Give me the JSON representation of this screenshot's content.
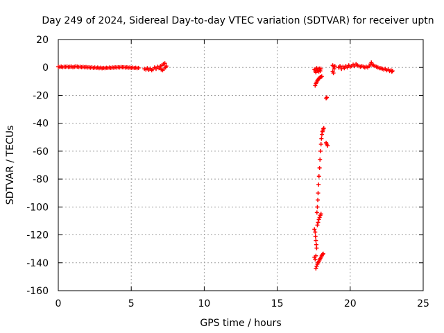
{
  "chart_data": {
    "type": "scatter",
    "title": "Day 249 of 2024, Sidereal Day-to-day VTEC variation (SDTVAR) for receiver uptn",
    "xlabel": "GPS time / hours",
    "ylabel": "SDTVAR / TECUs",
    "xlim": [
      0,
      25
    ],
    "ylim": [
      -160,
      20
    ],
    "xticks": [
      0,
      5,
      10,
      15,
      20,
      25
    ],
    "yticks": [
      -160,
      -140,
      -120,
      -100,
      -80,
      -60,
      -40,
      -20,
      0,
      20
    ],
    "grid": true,
    "marker": "+",
    "color": "#ff0000",
    "series": [
      {
        "name": "SDTVAR",
        "points": [
          [
            0.0,
            0.5
          ],
          [
            0.1,
            0.3
          ],
          [
            0.2,
            0.6
          ],
          [
            0.3,
            0.2
          ],
          [
            0.4,
            0.5
          ],
          [
            0.5,
            0.4
          ],
          [
            0.6,
            0.7
          ],
          [
            0.7,
            0.3
          ],
          [
            0.8,
            0.5
          ],
          [
            0.9,
            0.6
          ],
          [
            1.0,
            0.2
          ],
          [
            1.1,
            0.4
          ],
          [
            1.2,
            0.8
          ],
          [
            1.3,
            0.6
          ],
          [
            1.4,
            0.3
          ],
          [
            1.5,
            0.5
          ],
          [
            1.6,
            0.2
          ],
          [
            1.7,
            0.4
          ],
          [
            1.8,
            0.1
          ],
          [
            1.9,
            0.3
          ],
          [
            2.0,
            0.0
          ],
          [
            2.1,
            0.2
          ],
          [
            2.2,
            -0.2
          ],
          [
            2.3,
            0.1
          ],
          [
            2.4,
            -0.3
          ],
          [
            2.5,
            0.0
          ],
          [
            2.6,
            -0.4
          ],
          [
            2.7,
            -0.1
          ],
          [
            2.8,
            -0.5
          ],
          [
            2.9,
            -0.2
          ],
          [
            3.0,
            -0.6
          ],
          [
            3.1,
            -0.3
          ],
          [
            3.2,
            -0.5
          ],
          [
            3.3,
            -0.2
          ],
          [
            3.4,
            -0.4
          ],
          [
            3.5,
            -0.1
          ],
          [
            3.6,
            -0.3
          ],
          [
            3.7,
            0.0
          ],
          [
            3.8,
            -0.2
          ],
          [
            3.9,
            0.1
          ],
          [
            4.0,
            -0.1
          ],
          [
            4.1,
            0.2
          ],
          [
            4.2,
            0.0
          ],
          [
            4.3,
            0.3
          ],
          [
            4.4,
            0.1
          ],
          [
            4.5,
            0.2
          ],
          [
            4.6,
            -0.1
          ],
          [
            4.7,
            0.1
          ],
          [
            4.8,
            -0.2
          ],
          [
            4.9,
            0.0
          ],
          [
            5.0,
            -0.3
          ],
          [
            5.1,
            -0.1
          ],
          [
            5.2,
            -0.4
          ],
          [
            5.3,
            -0.2
          ],
          [
            5.4,
            -0.5
          ],
          [
            5.5,
            -0.3
          ],
          [
            5.9,
            -1.0
          ],
          [
            6.0,
            -1.5
          ],
          [
            6.1,
            -0.5
          ],
          [
            6.2,
            -1.8
          ],
          [
            6.3,
            -0.8
          ],
          [
            6.4,
            -2.0
          ],
          [
            6.5,
            -1.2
          ],
          [
            6.6,
            0.0
          ],
          [
            6.7,
            -1.0
          ],
          [
            6.8,
            0.5
          ],
          [
            6.9,
            -0.5
          ],
          [
            7.0,
            1.0
          ],
          [
            7.05,
            -1.5
          ],
          [
            7.1,
            1.5
          ],
          [
            7.15,
            -2.0
          ],
          [
            7.2,
            2.5
          ],
          [
            7.25,
            -1.0
          ],
          [
            7.3,
            3.0
          ],
          [
            7.35,
            0.0
          ],
          [
            7.4,
            1.0
          ],
          [
            17.55,
            -1.5
          ],
          [
            17.6,
            -2.5
          ],
          [
            17.65,
            -3.5
          ],
          [
            17.7,
            -0.5
          ],
          [
            17.75,
            -2.0
          ],
          [
            17.8,
            -1.0
          ],
          [
            17.85,
            -3.0
          ],
          [
            17.9,
            -0.8
          ],
          [
            17.95,
            -2.5
          ],
          [
            18.0,
            -1.0
          ],
          [
            17.6,
            -13.0
          ],
          [
            17.65,
            -11.5
          ],
          [
            17.7,
            -10.5
          ],
          [
            17.75,
            -9.5
          ],
          [
            17.8,
            -8.8
          ],
          [
            17.85,
            -8.0
          ],
          [
            17.9,
            -7.5
          ],
          [
            17.95,
            -7.0
          ],
          [
            18.0,
            -6.8
          ],
          [
            18.05,
            -6.5
          ],
          [
            18.35,
            -22.0
          ],
          [
            18.4,
            -21.5
          ],
          [
            17.55,
            -116.0
          ],
          [
            17.6,
            -118.0
          ],
          [
            17.62,
            -121.0
          ],
          [
            17.65,
            -124.0
          ],
          [
            17.68,
            -127.0
          ],
          [
            17.7,
            -129.5
          ],
          [
            17.55,
            -136.0
          ],
          [
            17.6,
            -137.5
          ],
          [
            17.65,
            -135.0
          ],
          [
            17.72,
            -104.0
          ],
          [
            17.75,
            -100.0
          ],
          [
            17.78,
            -95.0
          ],
          [
            17.8,
            -90.0
          ],
          [
            17.83,
            -84.0
          ],
          [
            17.86,
            -78.0
          ],
          [
            17.9,
            -72.0
          ],
          [
            17.93,
            -66.0
          ],
          [
            17.96,
            -60.0
          ],
          [
            18.0,
            -55.0
          ],
          [
            18.03,
            -51.0
          ],
          [
            18.06,
            -48.0
          ],
          [
            18.1,
            -46.0
          ],
          [
            18.13,
            -45.0
          ],
          [
            18.16,
            -44.0
          ],
          [
            18.19,
            -43.5
          ],
          [
            17.75,
            -113.0
          ],
          [
            17.8,
            -111.0
          ],
          [
            17.85,
            -109.0
          ],
          [
            17.9,
            -107.5
          ],
          [
            17.95,
            -106.0
          ],
          [
            18.0,
            -105.0
          ],
          [
            17.65,
            -144.0
          ],
          [
            17.7,
            -142.5
          ],
          [
            17.75,
            -141.0
          ],
          [
            17.8,
            -140.0
          ],
          [
            17.85,
            -139.0
          ],
          [
            17.9,
            -138.0
          ],
          [
            17.95,
            -137.0
          ],
          [
            18.0,
            -136.0
          ],
          [
            18.05,
            -135.0
          ],
          [
            18.1,
            -134.0
          ],
          [
            18.15,
            -133.5
          ],
          [
            18.35,
            -54.0
          ],
          [
            18.4,
            -55.0
          ],
          [
            18.45,
            -56.0
          ],
          [
            18.8,
            1.5
          ],
          [
            18.85,
            0.5
          ],
          [
            18.9,
            -1.0
          ],
          [
            18.95,
            1.0
          ],
          [
            18.8,
            -3.0
          ],
          [
            18.85,
            -4.0
          ],
          [
            19.2,
            0.0
          ],
          [
            19.3,
            1.0
          ],
          [
            19.4,
            -1.0
          ],
          [
            19.5,
            0.5
          ],
          [
            19.6,
            -0.5
          ],
          [
            19.7,
            1.0
          ],
          [
            19.8,
            0.0
          ],
          [
            19.9,
            1.5
          ],
          [
            20.0,
            0.5
          ],
          [
            20.1,
            1.0
          ],
          [
            20.2,
            2.0
          ],
          [
            20.3,
            1.0
          ],
          [
            20.4,
            2.5
          ],
          [
            20.5,
            1.5
          ],
          [
            20.6,
            1.0
          ],
          [
            20.7,
            0.5
          ],
          [
            20.8,
            1.0
          ],
          [
            20.9,
            0.5
          ],
          [
            21.0,
            0.0
          ],
          [
            21.1,
            0.5
          ],
          [
            21.2,
            0.0
          ],
          [
            21.3,
            1.0
          ],
          [
            21.4,
            2.5
          ],
          [
            21.45,
            3.5
          ],
          [
            21.5,
            2.0
          ],
          [
            21.6,
            1.5
          ],
          [
            21.7,
            1.0
          ],
          [
            21.8,
            0.5
          ],
          [
            21.9,
            0.0
          ],
          [
            22.0,
            -0.5
          ],
          [
            22.1,
            -0.5
          ],
          [
            22.2,
            -1.0
          ],
          [
            22.3,
            -1.5
          ],
          [
            22.4,
            -1.0
          ],
          [
            22.5,
            -2.0
          ],
          [
            22.6,
            -1.5
          ],
          [
            22.7,
            -2.5
          ],
          [
            22.8,
            -2.0
          ],
          [
            22.85,
            -3.0
          ],
          [
            22.9,
            -2.5
          ]
        ]
      }
    ]
  }
}
